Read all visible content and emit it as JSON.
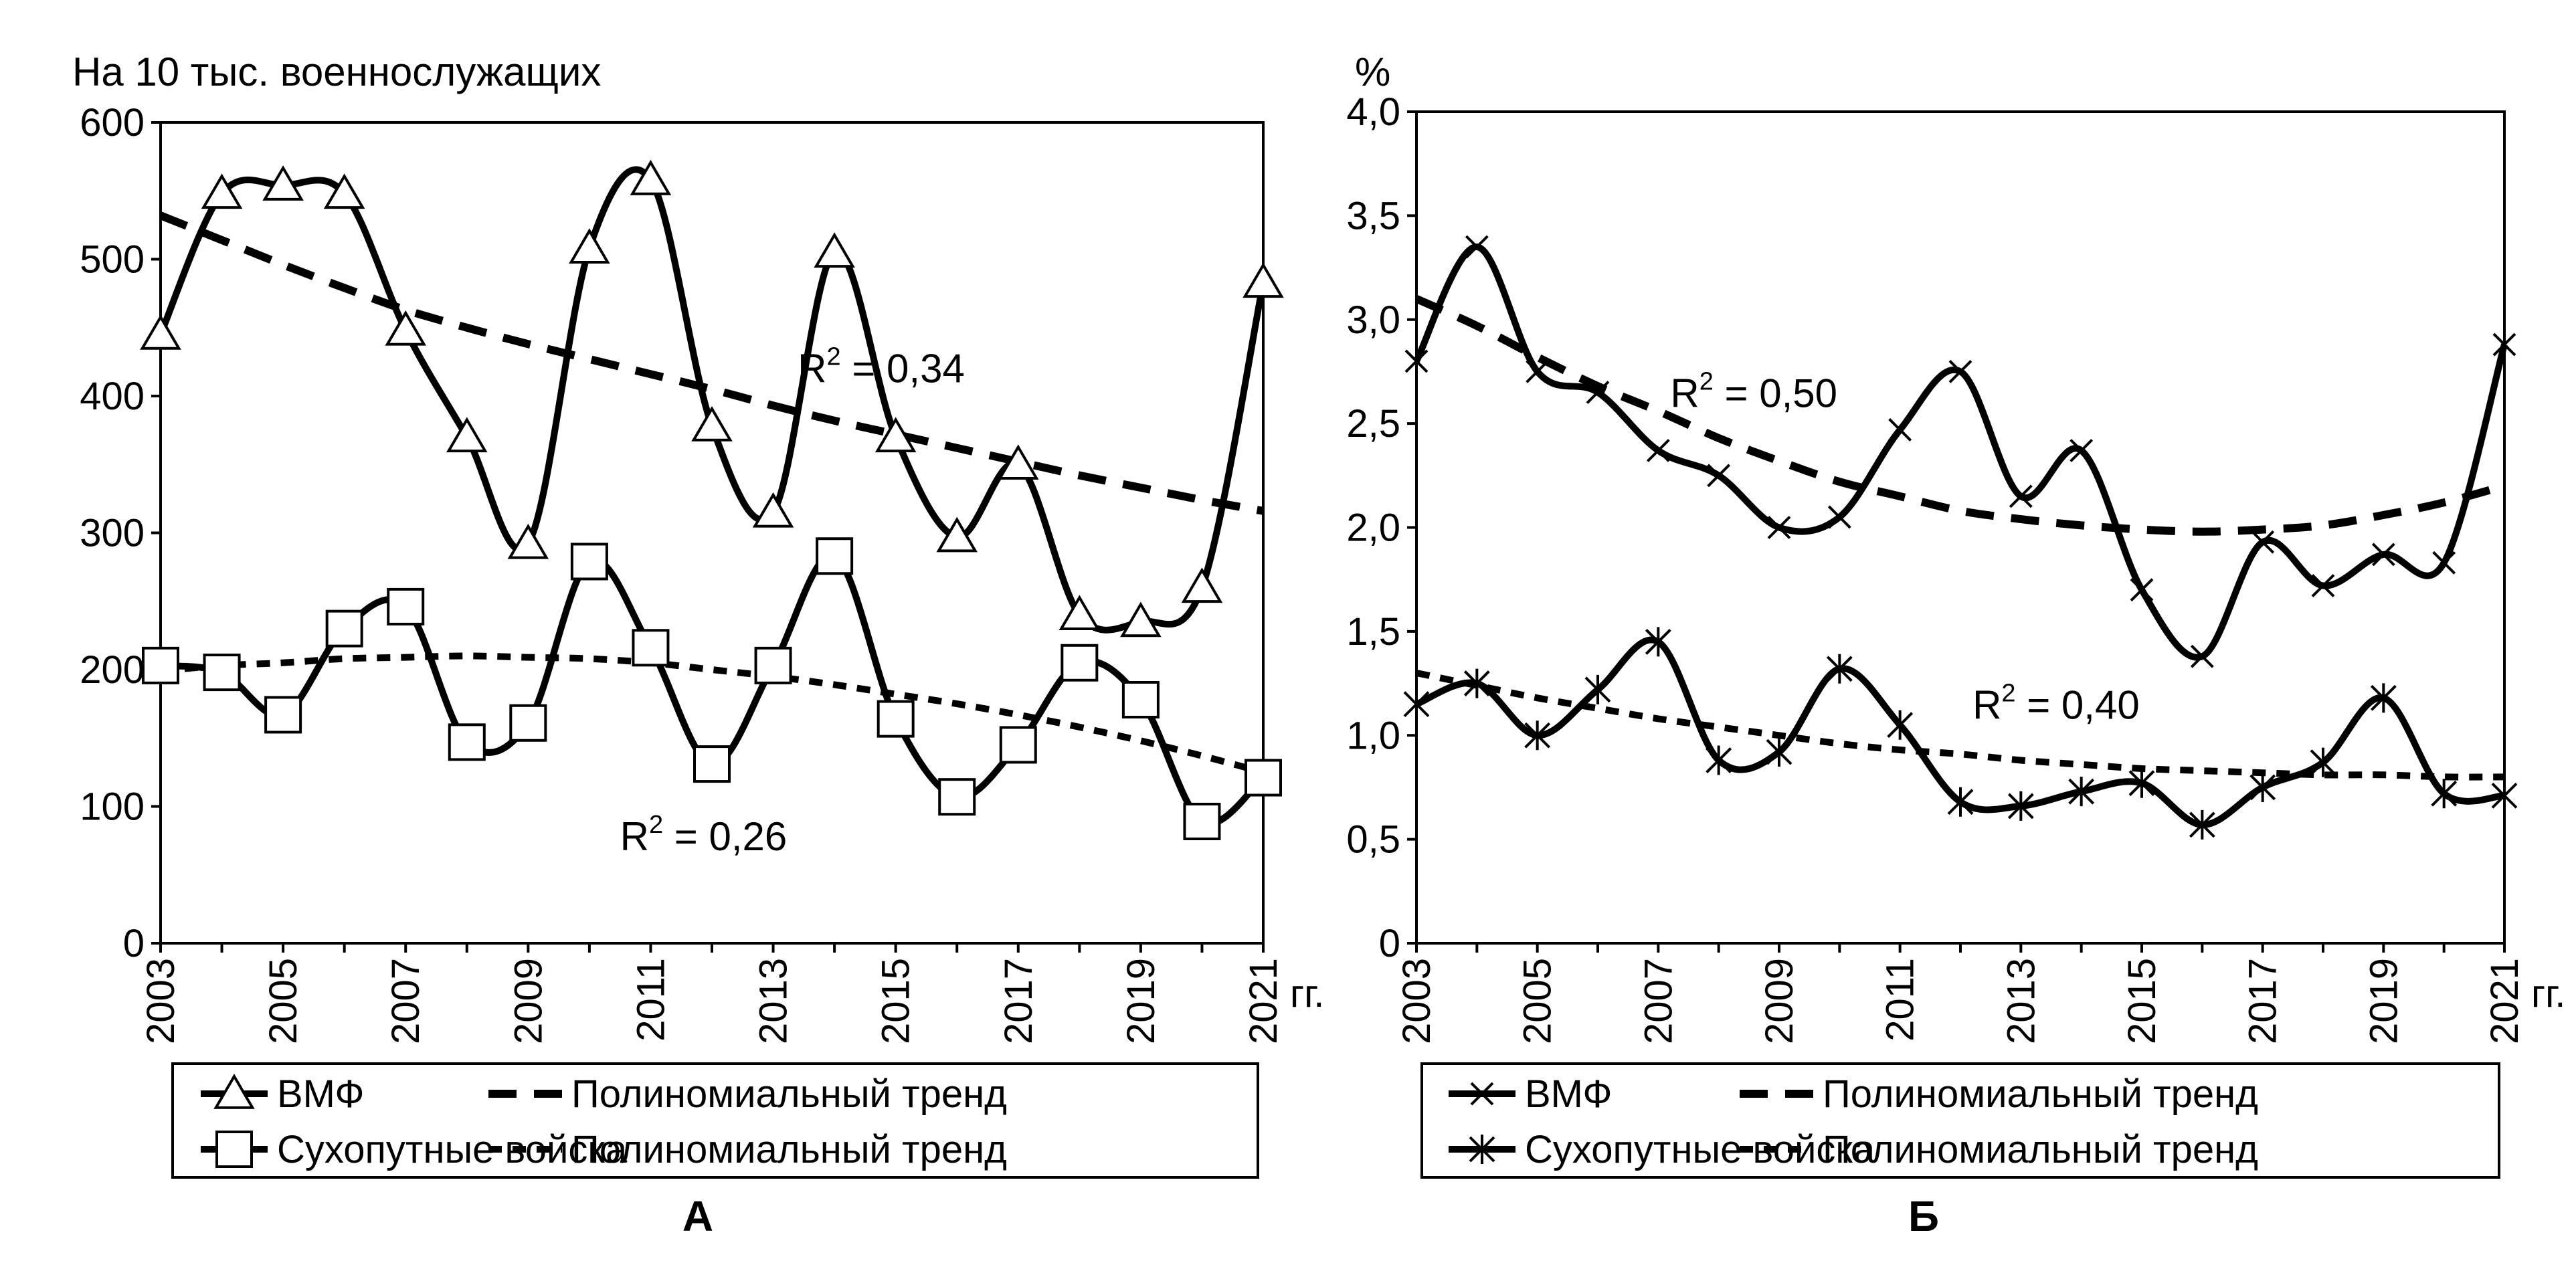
{
  "chart_data": [
    {
      "type": "line",
      "panel_label": "А",
      "ylabel": "На 10 тыс.  военнослужащих",
      "xlabel_suffix": "гг.",
      "ylim": [
        0,
        600
      ],
      "yticks": [
        0,
        100,
        200,
        300,
        400,
        500,
        600
      ],
      "xlim": [
        2003,
        2021
      ],
      "xticks": [
        2003,
        2005,
        2007,
        2009,
        2011,
        2013,
        2015,
        2017,
        2019,
        2021
      ],
      "x": [
        2003,
        2004,
        2005,
        2006,
        2007,
        2008,
        2009,
        2010,
        2011,
        2012,
        2013,
        2014,
        2015,
        2016,
        2017,
        2018,
        2019,
        2020,
        2021
      ],
      "series": [
        {
          "name": "ВМФ",
          "marker": "triangle",
          "values": [
            445,
            548,
            554,
            548,
            448,
            370,
            292,
            508,
            558,
            378,
            315,
            505,
            370,
            297,
            350,
            240,
            235,
            260,
            483
          ]
        },
        {
          "name": "Сухопутные войска",
          "marker": "square",
          "values": [
            203,
            198,
            167,
            230,
            246,
            147,
            161,
            279,
            216,
            131,
            203,
            283,
            164,
            107,
            145,
            205,
            178,
            89,
            121
          ]
        }
      ],
      "trends": [
        {
          "name": "Полиномиальный тренд",
          "style": "long-dash",
          "values": [
            532,
            514,
            496,
            479,
            463,
            450,
            438,
            427,
            416,
            405,
            393,
            382,
            372,
            362,
            352,
            342,
            333,
            324,
            316
          ]
        },
        {
          "name": "Полиномиальный тренд",
          "style": "short-dash",
          "values": [
            199,
            203,
            205,
            208,
            209,
            210,
            209,
            208,
            205,
            200,
            195,
            189,
            182,
            175,
            167,
            158,
            148,
            137,
            125
          ]
        }
      ],
      "annotations": [
        {
          "base": "R",
          "sup": "2",
          "rest": " = 0,34",
          "x": 2013.4,
          "y": 410
        },
        {
          "base": "R",
          "sup": "2",
          "rest": " = 0,26",
          "x": 2010.5,
          "y": 68
        }
      ],
      "legend": [
        {
          "label": "ВМФ",
          "kind": "series",
          "index": 0
        },
        {
          "label": "Полиномиальный тренд",
          "kind": "trend",
          "index": 0
        },
        {
          "label": "Сухопутные войска",
          "kind": "series",
          "index": 1
        },
        {
          "label": "Полиномиальный тренд",
          "kind": "trend",
          "index": 1
        }
      ]
    },
    {
      "type": "line",
      "panel_label": "Б",
      "ylabel": "%",
      "xlabel_suffix": "гг.",
      "ylim": [
        0,
        4.0
      ],
      "yticks": [
        0,
        0.5,
        1.0,
        1.5,
        2.0,
        2.5,
        3.0,
        3.5,
        4.0
      ],
      "ytick_labels": [
        "0",
        "0,5",
        "1,0",
        "1,5",
        "2,0",
        "2,5",
        "3,0",
        "3,5",
        "4,0"
      ],
      "xlim": [
        2003,
        2021
      ],
      "xticks": [
        2003,
        2005,
        2007,
        2009,
        2011,
        2013,
        2015,
        2017,
        2019,
        2021
      ],
      "x": [
        2003,
        2004,
        2005,
        2006,
        2007,
        2008,
        2009,
        2010,
        2011,
        2012,
        2013,
        2014,
        2015,
        2016,
        2017,
        2018,
        2019,
        2020,
        2021
      ],
      "series": [
        {
          "name": "ВМФ",
          "marker": "x",
          "values": [
            2.8,
            3.35,
            2.75,
            2.65,
            2.37,
            2.25,
            2.0,
            2.05,
            2.47,
            2.75,
            2.15,
            2.37,
            1.7,
            1.38,
            1.93,
            1.72,
            1.87,
            1.83,
            2.88
          ]
        },
        {
          "name": "Сухопутные войска",
          "marker": "asterisk",
          "values": [
            1.15,
            1.25,
            1.0,
            1.22,
            1.45,
            0.88,
            0.92,
            1.32,
            1.05,
            0.68,
            0.66,
            0.73,
            0.77,
            0.57,
            0.75,
            0.87,
            1.18,
            0.72,
            0.71
          ]
        }
      ],
      "trends": [
        {
          "name": "Полиномиальный тренд",
          "style": "long-dash",
          "values": [
            3.1,
            2.97,
            2.82,
            2.68,
            2.56,
            2.43,
            2.32,
            2.22,
            2.15,
            2.08,
            2.04,
            2.01,
            1.99,
            1.98,
            1.99,
            2.01,
            2.06,
            2.12,
            2.2
          ]
        },
        {
          "name": "Полиномиальный тренд",
          "style": "short-dash",
          "values": [
            1.3,
            1.24,
            1.18,
            1.13,
            1.08,
            1.04,
            1.0,
            0.96,
            0.93,
            0.91,
            0.88,
            0.86,
            0.84,
            0.83,
            0.82,
            0.81,
            0.81,
            0.8,
            0.8
          ]
        }
      ],
      "annotations": [
        {
          "base": "R",
          "sup": "2",
          "rest": " = 0,50",
          "x": 2007.2,
          "y": 2.58
        },
        {
          "base": "R",
          "sup": "2",
          "rest": " = 0,40",
          "x": 2012.2,
          "y": 1.08
        }
      ],
      "legend": [
        {
          "label": "ВМФ",
          "kind": "series",
          "index": 0
        },
        {
          "label": "Полиномиальный тренд",
          "kind": "trend",
          "index": 0
        },
        {
          "label": "Сухопутные войска",
          "kind": "series",
          "index": 1
        },
        {
          "label": "Полиномиальный тренд",
          "kind": "trend",
          "index": 1
        }
      ]
    }
  ]
}
